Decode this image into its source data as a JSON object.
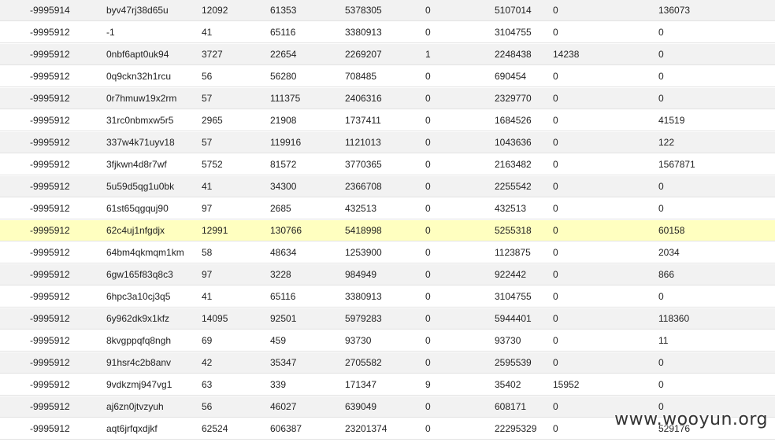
{
  "table": {
    "highlight_color": "#ffffc0",
    "rows": [
      {
        "cells": [
          "-9995914",
          "byv47rj38d65u",
          "12092",
          "61353",
          "5378305",
          "0",
          "5107014",
          "0",
          "136073"
        ],
        "highlighted": false
      },
      {
        "cells": [
          "-9995912",
          "-1",
          "41",
          "65116",
          "3380913",
          "0",
          "3104755",
          "0",
          "0"
        ],
        "highlighted": false
      },
      {
        "cells": [
          "-9995912",
          "0nbf6apt0uk94",
          "3727",
          "22654",
          "2269207",
          "1",
          "2248438",
          "14238",
          "0"
        ],
        "highlighted": false
      },
      {
        "cells": [
          "-9995912",
          "0q9ckn32h1rcu",
          "56",
          "56280",
          "708485",
          "0",
          "690454",
          "0",
          "0"
        ],
        "highlighted": false
      },
      {
        "cells": [
          "-9995912",
          "0r7hmuw19x2rm",
          "57",
          "111375",
          "2406316",
          "0",
          "2329770",
          "0",
          "0"
        ],
        "highlighted": false
      },
      {
        "cells": [
          "-9995912",
          "31rc0nbmxw5r5",
          "2965",
          "21908",
          "1737411",
          "0",
          "1684526",
          "0",
          "41519"
        ],
        "highlighted": false
      },
      {
        "cells": [
          "-9995912",
          "337w4k71uyv18",
          "57",
          "119916",
          "1121013",
          "0",
          "1043636",
          "0",
          "122"
        ],
        "highlighted": false
      },
      {
        "cells": [
          "-9995912",
          "3fjkwn4d8r7wf",
          "5752",
          "81572",
          "3770365",
          "0",
          "2163482",
          "0",
          "1567871"
        ],
        "highlighted": false
      },
      {
        "cells": [
          "-9995912",
          "5u59d5qg1u0bk",
          "41",
          "34300",
          "2366708",
          "0",
          "2255542",
          "0",
          "0"
        ],
        "highlighted": false
      },
      {
        "cells": [
          "-9995912",
          "61st65qgquj90",
          "97",
          "2685",
          "432513",
          "0",
          "432513",
          "0",
          "0"
        ],
        "highlighted": false
      },
      {
        "cells": [
          "-9995912",
          "62c4uj1nfgdjx",
          "12991",
          "130766",
          "5418998",
          "0",
          "5255318",
          "0",
          "60158"
        ],
        "highlighted": true
      },
      {
        "cells": [
          "-9995912",
          "64bm4qkmqm1km",
          "58",
          "48634",
          "1253900",
          "0",
          "1123875",
          "0",
          "2034"
        ],
        "highlighted": false
      },
      {
        "cells": [
          "-9995912",
          "6gw165f83q8c3",
          "97",
          "3228",
          "984949",
          "0",
          "922442",
          "0",
          "866"
        ],
        "highlighted": false
      },
      {
        "cells": [
          "-9995912",
          "6hpc3a10cj3q5",
          "41",
          "65116",
          "3380913",
          "0",
          "3104755",
          "0",
          "0"
        ],
        "highlighted": false
      },
      {
        "cells": [
          "-9995912",
          "6y962dk9x1kfz",
          "14095",
          "92501",
          "5979283",
          "0",
          "5944401",
          "0",
          "118360"
        ],
        "highlighted": false
      },
      {
        "cells": [
          "-9995912",
          "8kvgppqfq8ngh",
          "69",
          "459",
          "93730",
          "0",
          "93730",
          "0",
          "11"
        ],
        "highlighted": false
      },
      {
        "cells": [
          "-9995912",
          "91hsr4c2b8anv",
          "42",
          "35347",
          "2705582",
          "0",
          "2595539",
          "0",
          "0"
        ],
        "highlighted": false
      },
      {
        "cells": [
          "-9995912",
          "9vdkzmj947vg1",
          "63",
          "339",
          "171347",
          "9",
          "35402",
          "15952",
          "0"
        ],
        "highlighted": false
      },
      {
        "cells": [
          "-9995912",
          "aj6zn0jtvzyuh",
          "56",
          "46027",
          "639049",
          "0",
          "608171",
          "0",
          "0"
        ],
        "highlighted": false
      },
      {
        "cells": [
          "-9995912",
          "aqt6jrfqxdjkf",
          "62524",
          "606387",
          "23201374",
          "0",
          "22295329",
          "0",
          "529176"
        ],
        "highlighted": false
      }
    ]
  },
  "watermark": {
    "text": "www.wooyun.org"
  }
}
